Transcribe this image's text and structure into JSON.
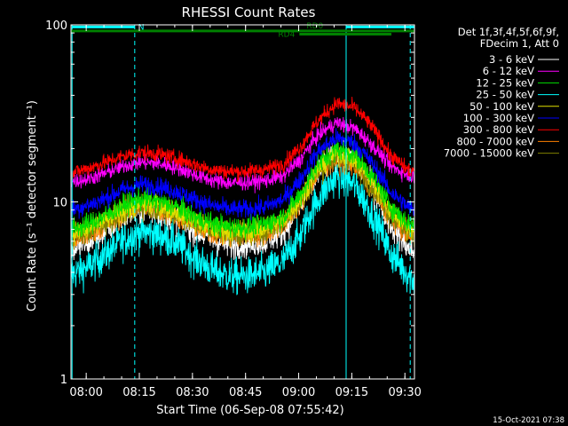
{
  "chart_data": {
    "type": "line",
    "title": "RHESSI Count Rates",
    "xlabel": "Start Time (06-Sep-08 07:55:42)",
    "ylabel": "Count Rate (s⁻¹ detector segment⁻¹)",
    "x_unit": "minutes",
    "x_start": "07:55:42",
    "xlim": [
      0,
      97
    ],
    "x_ticks": [
      {
        "label": "08:00",
        "value": 4.3
      },
      {
        "label": "08:15",
        "value": 19.3
      },
      {
        "label": "08:30",
        "value": 34.3
      },
      {
        "label": "08:45",
        "value": 49.3
      },
      {
        "label": "09:00",
        "value": 64.3
      },
      {
        "label": "09:15",
        "value": 79.3
      },
      {
        "label": "09:30",
        "value": 94.3
      }
    ],
    "y_scale": "log",
    "ylim": [
      1,
      100
    ],
    "y_ticks": [
      {
        "label": "1",
        "value": 1
      },
      {
        "label": "10",
        "value": 10
      },
      {
        "label": "100",
        "value": 100
      }
    ],
    "grid": false,
    "legend_position": "right",
    "legend_header": [
      "Det 1f,3f,4f,5f,6f,9f,",
      "FDecim 1, Att 0"
    ],
    "x": [
      0,
      5,
      10,
      15,
      20,
      25,
      30,
      35,
      40,
      45,
      50,
      55,
      60,
      65,
      70,
      75,
      80,
      85,
      90,
      95,
      97
    ],
    "series": [
      {
        "name": "3 - 6 keV",
        "color": "#ffffff",
        "noise": 0.09,
        "values": [
          5.4,
          5.9,
          6.9,
          8.3,
          9.0,
          8.8,
          8.0,
          6.9,
          6.1,
          5.7,
          5.8,
          6.0,
          6.8,
          9.5,
          14.5,
          18.5,
          17.0,
          12.0,
          7.5,
          5.5,
          5.2
        ]
      },
      {
        "name": "6 - 12 keV",
        "color": "#ff00ff",
        "noise": 0.05,
        "values": [
          13.0,
          13.5,
          14.6,
          16.0,
          16.8,
          16.4,
          15.6,
          14.2,
          13.2,
          12.8,
          12.9,
          13.2,
          14.0,
          17.5,
          24.0,
          28.0,
          26.0,
          21.0,
          16.0,
          14.2,
          14.0
        ]
      },
      {
        "name": "12 - 25 keV",
        "color": "#00e000",
        "noise": 0.07,
        "values": [
          7.0,
          7.5,
          8.4,
          9.6,
          10.4,
          10.0,
          9.3,
          8.2,
          7.5,
          7.2,
          7.2,
          7.5,
          8.3,
          11.0,
          16.5,
          20.0,
          18.5,
          14.0,
          9.5,
          7.6,
          7.4
        ]
      },
      {
        "name": "25 - 50 keV",
        "color": "#00ffff",
        "noise": 0.12,
        "values": [
          3.9,
          4.3,
          5.1,
          6.1,
          6.8,
          6.5,
          5.8,
          4.8,
          4.1,
          3.8,
          3.8,
          4.0,
          4.6,
          6.5,
          10.5,
          14.0,
          12.5,
          8.5,
          5.2,
          3.9,
          3.6
        ]
      },
      {
        "name": "50 - 100 keV",
        "color": "#e0e000",
        "noise": 0.07,
        "values": [
          6.6,
          7.0,
          7.9,
          9.0,
          9.8,
          9.5,
          8.8,
          7.8,
          7.1,
          6.8,
          6.8,
          7.1,
          7.9,
          10.4,
          15.5,
          19.0,
          17.5,
          13.0,
          9.0,
          7.2,
          7.0
        ]
      },
      {
        "name": "100 - 300 keV",
        "color": "#0000ff",
        "noise": 0.06,
        "values": [
          9.0,
          9.6,
          10.5,
          11.8,
          12.6,
          12.2,
          11.4,
          10.3,
          9.5,
          9.1,
          9.1,
          9.4,
          10.3,
          13.5,
          19.5,
          23.0,
          21.5,
          16.5,
          11.5,
          9.4,
          9.0
        ]
      },
      {
        "name": "300 - 800 keV",
        "color": "#ff0000",
        "noise": 0.05,
        "values": [
          14.5,
          15.5,
          16.8,
          18.2,
          19.0,
          18.6,
          17.6,
          16.2,
          15.2,
          14.8,
          14.9,
          15.3,
          16.4,
          20.5,
          29.0,
          36.0,
          34.0,
          26.5,
          18.5,
          15.2,
          15.0
        ]
      },
      {
        "name": "800 - 7000 keV",
        "color": "#ff8000",
        "noise": 0.07,
        "values": [
          6.0,
          6.5,
          7.4,
          8.5,
          9.2,
          8.9,
          8.2,
          7.2,
          6.6,
          6.3,
          6.3,
          6.6,
          7.4,
          9.8,
          14.5,
          17.5,
          16.0,
          11.8,
          8.2,
          6.5,
          6.3
        ]
      },
      {
        "name": "7000 - 15000 keV",
        "color": "#808000",
        "noise": 0.08,
        "values": [
          6.3,
          6.8,
          7.7,
          8.8,
          9.5,
          9.2,
          8.5,
          7.5,
          6.9,
          6.6,
          6.6,
          6.9,
          7.7,
          10.1,
          15.0,
          18.0,
          16.5,
          12.2,
          8.5,
          6.8,
          6.6
        ]
      }
    ],
    "vertical_markers": [
      {
        "x": 0.3,
        "style": "solid",
        "color": "#00ffff"
      },
      {
        "x": 18.0,
        "style": "dashed",
        "color": "#00ffff"
      },
      {
        "x": 77.7,
        "style": "solid",
        "color": "#00ffff"
      },
      {
        "x": 95.8,
        "style": "dashed",
        "color": "#00ffff"
      }
    ],
    "flag_bars": [
      {
        "label": "N",
        "color": "#00ffff",
        "y": 92,
        "ranges": [
          [
            0.3,
            18.0
          ]
        ],
        "label_x": 19.0
      },
      {
        "label": "",
        "color": "#00ffff",
        "y": 92,
        "ranges": [
          [
            77.7,
            97
          ]
        ],
        "label_x": null
      },
      {
        "label": "RD0",
        "color": "#008000",
        "y": 77,
        "ranges": [
          [
            0,
            97
          ]
        ],
        "label_x": 66.5,
        "label_pos": "above"
      },
      {
        "label": "RD4",
        "color": "#008000",
        "y": 65,
        "ranges": [
          [
            64.5,
            90.5
          ]
        ],
        "label_x": 58.5,
        "label_pos": "left"
      }
    ]
  },
  "footer": {
    "timestamp": "15-Oct-2021 07:38"
  }
}
